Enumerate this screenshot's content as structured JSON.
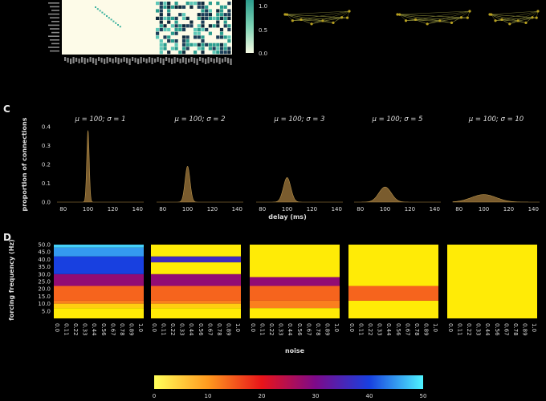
{
  "panels": {
    "c": "C",
    "d": "D"
  },
  "top": {
    "colorbar_ticks": [
      "1.0",
      "0.5",
      "0.0"
    ]
  },
  "chart_data": [
    {
      "type": "area",
      "panel": "C",
      "ylabel": "proportion of connections",
      "xlabel": "delay (ms)",
      "ylim": [
        0,
        0.4
      ],
      "yticks": [
        0.0,
        0.1,
        0.2,
        0.3,
        0.4
      ],
      "xticks": [
        80,
        100,
        120,
        140
      ],
      "xlim": [
        75,
        145
      ],
      "color": "#7a5c2e",
      "series": [
        {
          "title": "μ = 100; σ = 1",
          "mu": 100,
          "sigma": 1,
          "peak": 0.38
        },
        {
          "title": "μ = 100; σ = 2",
          "mu": 100,
          "sigma": 2,
          "peak": 0.19
        },
        {
          "title": "μ = 100; σ = 3",
          "mu": 100,
          "sigma": 3,
          "peak": 0.13
        },
        {
          "title": "μ = 100; σ = 5",
          "mu": 100,
          "sigma": 5,
          "peak": 0.08
        },
        {
          "title": "μ = 100; σ = 10",
          "mu": 100,
          "sigma": 10,
          "peak": 0.04
        }
      ]
    },
    {
      "type": "heatmap",
      "panel": "D",
      "ylabel": "forcing frequency (Hz)",
      "xlabel": "noise",
      "yticks": [
        "50.0",
        "45.0",
        "40.0",
        "35.0",
        "30.0",
        "25.0",
        "20.0",
        "15.0",
        "10.0",
        "5.0"
      ],
      "xticks": [
        "0.0",
        "0.11",
        "0.22",
        "0.33",
        "0.44",
        "0.56",
        "0.67",
        "0.78",
        "0.89",
        "1.0"
      ],
      "ylim": [
        0,
        50
      ],
      "colorbar": {
        "ticks": [
          "0",
          "10",
          "20",
          "30",
          "40",
          "50"
        ],
        "range": [
          0,
          50
        ]
      },
      "panels": [
        {
          "bands": [
            [
              0,
              7,
              2
            ],
            [
              7,
              10,
              5
            ],
            [
              10,
              12,
              12
            ],
            [
              12,
              22,
              14
            ],
            [
              22,
              30,
              28
            ],
            [
              30,
              42,
              40
            ],
            [
              42,
              48,
              45
            ],
            [
              48,
              50,
              48
            ]
          ]
        },
        {
          "bands": [
            [
              0,
              7,
              2
            ],
            [
              7,
              10,
              5
            ],
            [
              10,
              12,
              12
            ],
            [
              12,
              22,
              14
            ],
            [
              22,
              30,
              28
            ],
            [
              30,
              38,
              2
            ],
            [
              38,
              42,
              36
            ],
            [
              42,
              50,
              2
            ]
          ]
        },
        {
          "bands": [
            [
              0,
              7,
              2
            ],
            [
              7,
              12,
              12
            ],
            [
              12,
              22,
              14
            ],
            [
              22,
              28,
              28
            ],
            [
              28,
              50,
              2
            ]
          ]
        },
        {
          "bands": [
            [
              0,
              12,
              2
            ],
            [
              12,
              22,
              14
            ],
            [
              22,
              50,
              2
            ]
          ]
        },
        {
          "bands": [
            [
              0,
              50,
              2
            ]
          ]
        }
      ]
    }
  ]
}
